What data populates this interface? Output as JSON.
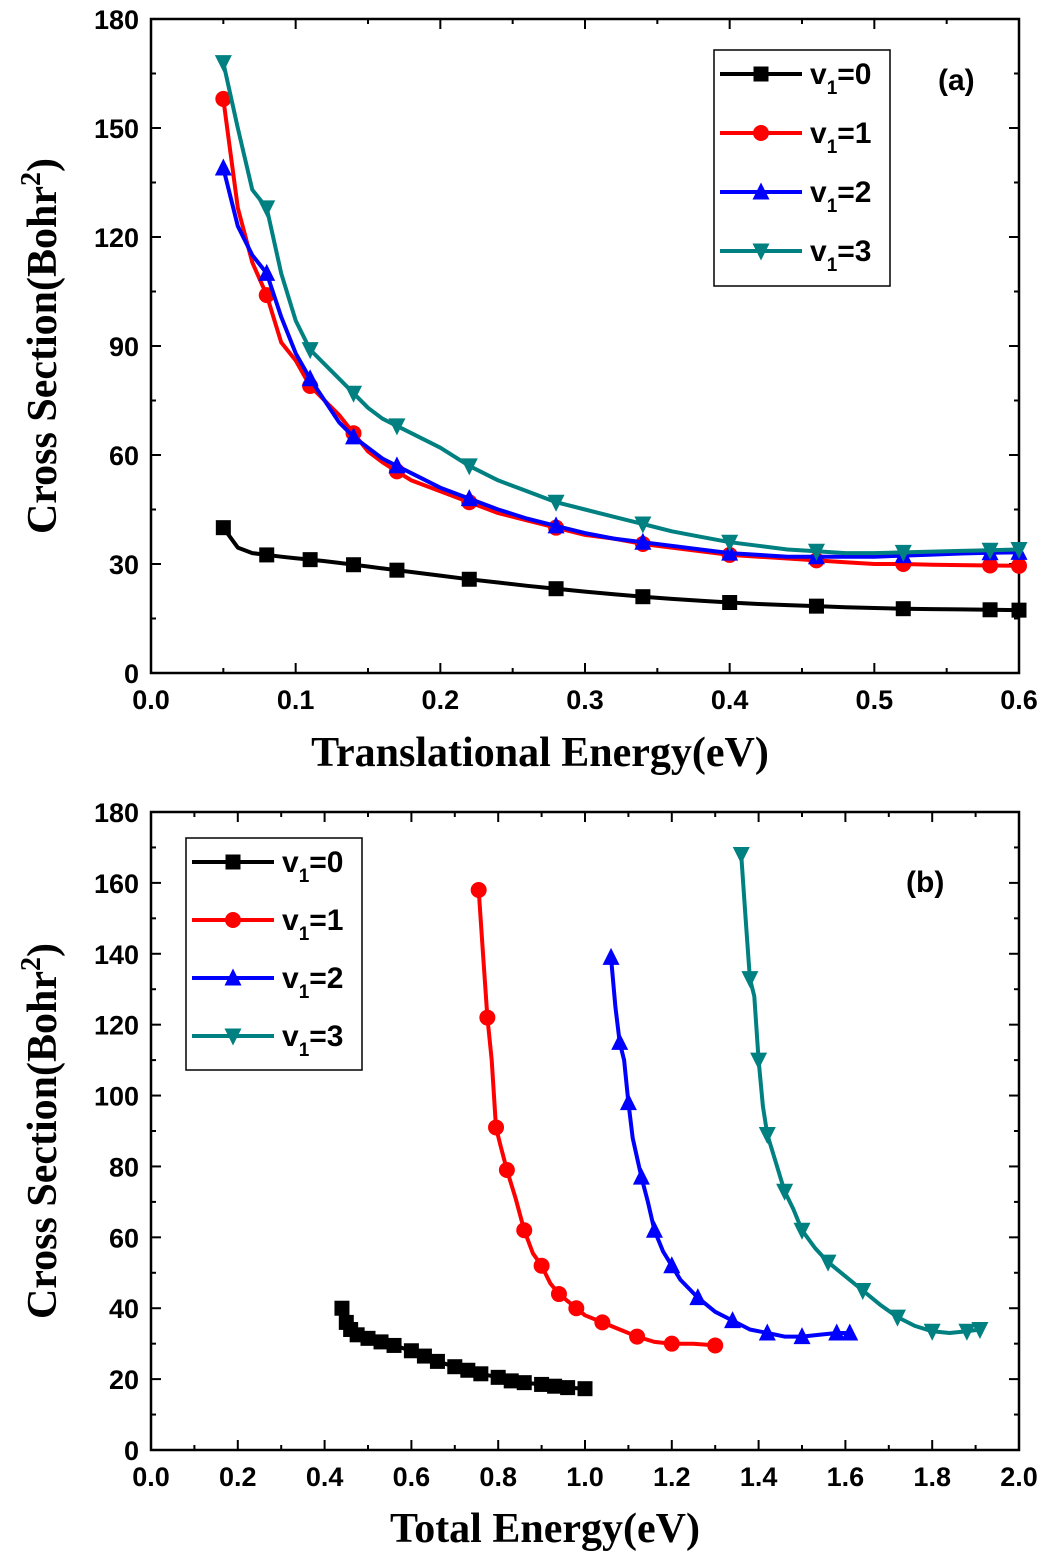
{
  "chart_data": [
    {
      "type": "line",
      "panel_label": "(a)",
      "xlabel": "Translational  Energy(eV)",
      "ylabel": "Cross Section(Bohr",
      "ylabel_sup": "2",
      "ylabel_close": ")",
      "xlim": [
        0.0,
        0.6
      ],
      "ylim": [
        0,
        180
      ],
      "xticks": [
        "0.0",
        "0.1",
        "0.2",
        "0.3",
        "0.4",
        "0.5",
        "0.6"
      ],
      "xtick_values": [
        0.0,
        0.1,
        0.2,
        0.3,
        0.4,
        0.5,
        0.6
      ],
      "yticks": [
        "0",
        "30",
        "60",
        "90",
        "120",
        "150",
        "180"
      ],
      "ytick_values": [
        0,
        30,
        60,
        90,
        120,
        150,
        180
      ],
      "legend_position": "top-right",
      "series": [
        {
          "name": "v1=0",
          "legend_base": "v",
          "legend_sub": "1",
          "legend_rest": "=0",
          "color": "#000000",
          "marker": "square",
          "x": [
            0.05,
            0.06,
            0.07,
            0.08,
            0.09,
            0.1,
            0.11,
            0.12,
            0.13,
            0.14,
            0.15,
            0.16,
            0.17,
            0.18,
            0.2,
            0.22,
            0.24,
            0.26,
            0.28,
            0.3,
            0.32,
            0.34,
            0.36,
            0.38,
            0.4,
            0.42,
            0.44,
            0.46,
            0.48,
            0.5,
            0.52,
            0.54,
            0.56,
            0.58,
            0.6
          ],
          "y": [
            40,
            34.5,
            33,
            32.5,
            32,
            31.6,
            31.2,
            30.8,
            30.3,
            29.8,
            29.3,
            28.8,
            28.3,
            27.8,
            26.8,
            25.8,
            24.9,
            24,
            23.2,
            22.4,
            21.7,
            21,
            20.4,
            19.9,
            19.4,
            19,
            18.7,
            18.4,
            18.1,
            17.9,
            17.7,
            17.6,
            17.5,
            17.4,
            17.3
          ],
          "marker_every": 3
        },
        {
          "name": "v1=1",
          "legend_base": "v",
          "legend_sub": "1",
          "legend_rest": "=1",
          "color": "#ff0000",
          "marker": "circle",
          "x": [
            0.05,
            0.06,
            0.07,
            0.08,
            0.09,
            0.1,
            0.11,
            0.12,
            0.13,
            0.14,
            0.15,
            0.16,
            0.17,
            0.18,
            0.2,
            0.22,
            0.24,
            0.26,
            0.28,
            0.3,
            0.32,
            0.34,
            0.36,
            0.38,
            0.4,
            0.42,
            0.44,
            0.46,
            0.48,
            0.5,
            0.52,
            0.54,
            0.56,
            0.58,
            0.6
          ],
          "y": [
            158,
            128,
            113,
            104,
            91,
            86,
            79,
            75,
            71,
            66,
            61,
            58,
            55.5,
            53,
            50,
            47,
            44,
            42,
            40,
            38,
            37,
            35.5,
            34.5,
            33.5,
            32.5,
            32,
            31.5,
            31,
            30.5,
            30,
            30,
            29.8,
            29.7,
            29.6,
            29.5
          ],
          "marker_every": 3
        },
        {
          "name": "v1=2",
          "legend_base": "v",
          "legend_sub": "1",
          "legend_rest": "=2",
          "color": "#0000ff",
          "marker": "triangle-up",
          "x": [
            0.05,
            0.06,
            0.07,
            0.08,
            0.09,
            0.1,
            0.11,
            0.12,
            0.13,
            0.14,
            0.15,
            0.16,
            0.17,
            0.18,
            0.2,
            0.22,
            0.24,
            0.26,
            0.28,
            0.3,
            0.32,
            0.34,
            0.36,
            0.38,
            0.4,
            0.42,
            0.44,
            0.46,
            0.48,
            0.5,
            0.52,
            0.54,
            0.56,
            0.58,
            0.6
          ],
          "y": [
            139,
            123,
            115,
            110,
            98,
            88,
            81,
            75,
            69,
            65,
            62,
            59,
            57,
            55,
            51,
            48,
            45,
            42.5,
            40.5,
            38.5,
            37,
            36,
            35,
            34,
            33,
            32.5,
            32,
            32,
            32,
            32,
            32.3,
            32.6,
            32.9,
            33.1,
            33.2
          ],
          "marker_every": 3
        },
        {
          "name": "v1=3",
          "legend_base": "v",
          "legend_sub": "1",
          "legend_rest": "=3",
          "color": "#008080",
          "marker": "triangle-down",
          "x": [
            0.05,
            0.06,
            0.07,
            0.08,
            0.09,
            0.1,
            0.11,
            0.12,
            0.13,
            0.14,
            0.15,
            0.16,
            0.17,
            0.18,
            0.2,
            0.22,
            0.24,
            0.26,
            0.28,
            0.3,
            0.32,
            0.34,
            0.36,
            0.38,
            0.4,
            0.42,
            0.44,
            0.46,
            0.48,
            0.5,
            0.52,
            0.54,
            0.56,
            0.58,
            0.6
          ],
          "y": [
            168,
            150,
            133,
            128,
            110,
            97,
            89,
            85,
            81,
            77,
            73,
            70,
            68,
            66,
            62,
            57,
            53,
            50,
            47,
            45,
            43,
            41,
            39,
            37.5,
            36,
            35,
            34,
            33.5,
            33,
            33,
            33.2,
            33.4,
            33.6,
            33.8,
            34
          ],
          "marker_every": 3
        }
      ]
    },
    {
      "type": "line",
      "panel_label": "(b)",
      "xlabel": "Total  Energy(eV)",
      "ylabel": "Cross Section(Bohr",
      "ylabel_sup": "2",
      "ylabel_close": ")",
      "xlim": [
        0.0,
        2.0
      ],
      "ylim": [
        0,
        180
      ],
      "xticks": [
        "0.0",
        "0.2",
        "0.4",
        "0.6",
        "0.8",
        "1.0",
        "1.2",
        "1.4",
        "1.6",
        "1.8",
        "2.0"
      ],
      "xtick_values": [
        0.0,
        0.2,
        0.4,
        0.6,
        0.8,
        1.0,
        1.2,
        1.4,
        1.6,
        1.8,
        2.0
      ],
      "yticks": [
        "0",
        "20",
        "40",
        "60",
        "80",
        "100",
        "120",
        "140",
        "160",
        "180"
      ],
      "ytick_values": [
        0,
        20,
        40,
        60,
        80,
        100,
        120,
        140,
        160,
        180
      ],
      "legend_position": "top-left",
      "series": [
        {
          "name": "v1=0",
          "legend_base": "v",
          "legend_sub": "1",
          "legend_rest": "=0",
          "color": "#000000",
          "marker": "square",
          "x": [
            0.44,
            0.45,
            0.46,
            0.475,
            0.5,
            0.53,
            0.56,
            0.6,
            0.63,
            0.66,
            0.7,
            0.73,
            0.76,
            0.8,
            0.83,
            0.86,
            0.9,
            0.93,
            0.96,
            1.0
          ],
          "y": [
            40,
            36,
            34,
            32.5,
            31.5,
            30.5,
            29.5,
            28,
            26.5,
            25,
            23.5,
            22.5,
            21.5,
            20.5,
            19.5,
            19,
            18.5,
            18,
            17.6,
            17.3
          ],
          "marker_every": 1
        },
        {
          "name": "v1=1",
          "legend_base": "v",
          "legend_sub": "1",
          "legend_rest": "=1",
          "color": "#ff0000",
          "marker": "circle",
          "x": [
            0.755,
            0.765,
            0.775,
            0.785,
            0.795,
            0.805,
            0.82,
            0.84,
            0.86,
            0.88,
            0.9,
            0.92,
            0.94,
            0.96,
            0.98,
            1.0,
            1.04,
            1.08,
            1.12,
            1.16,
            1.2,
            1.25,
            1.3
          ],
          "y": [
            158,
            140,
            122,
            110,
            91,
            86,
            79,
            71,
            62,
            55.5,
            52,
            47,
            44,
            42,
            40,
            38,
            36,
            34,
            32,
            30.5,
            30,
            30,
            29.5
          ],
          "marker_every": 2
        },
        {
          "name": "v1=2",
          "legend_base": "v",
          "legend_sub": "1",
          "legend_rest": "=2",
          "color": "#0000ff",
          "marker": "triangle-up",
          "x": [
            1.06,
            1.07,
            1.08,
            1.09,
            1.1,
            1.11,
            1.13,
            1.145,
            1.16,
            1.18,
            1.2,
            1.22,
            1.26,
            1.3,
            1.34,
            1.38,
            1.42,
            1.46,
            1.5,
            1.54,
            1.58,
            1.61
          ],
          "y": [
            139,
            125,
            115,
            110,
            98,
            88,
            77,
            70,
            62,
            56,
            52,
            48,
            43,
            39,
            36.5,
            34,
            33,
            32,
            32,
            32.5,
            33,
            33
          ],
          "marker_every": 2
        },
        {
          "name": "v1=3",
          "legend_base": "v",
          "legend_sub": "1",
          "legend_rest": "=3",
          "color": "#008080",
          "marker": "triangle-down",
          "x": [
            1.36,
            1.37,
            1.38,
            1.39,
            1.4,
            1.41,
            1.42,
            1.44,
            1.46,
            1.48,
            1.5,
            1.53,
            1.56,
            1.6,
            1.64,
            1.68,
            1.72,
            1.76,
            1.8,
            1.84,
            1.88,
            1.91
          ],
          "y": [
            168,
            150,
            133,
            128,
            110,
            97,
            89,
            81,
            73,
            68,
            62,
            57,
            53,
            49,
            45,
            41,
            37.5,
            35,
            33.5,
            33,
            33.5,
            34
          ],
          "marker_every": 2
        }
      ]
    }
  ]
}
